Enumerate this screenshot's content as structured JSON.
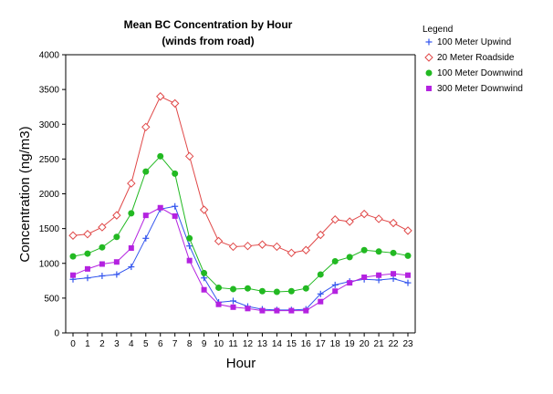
{
  "chart_data": {
    "type": "line",
    "title": "Mean BC Concentration by Hour",
    "subtitle": "(winds from road)",
    "xlabel": "Hour",
    "ylabel": "Concentration (ng/m3)",
    "xlim": [
      0,
      23
    ],
    "ylim": [
      0,
      4000
    ],
    "yticks": [
      0,
      500,
      1000,
      1500,
      2000,
      2500,
      3000,
      3500,
      4000
    ],
    "x": [
      0,
      1,
      2,
      3,
      4,
      5,
      6,
      7,
      8,
      9,
      10,
      11,
      12,
      13,
      14,
      15,
      16,
      17,
      18,
      19,
      20,
      21,
      22,
      23
    ],
    "grid": false,
    "legend": {
      "title": "Legend",
      "position": "top-right"
    },
    "series": [
      {
        "name": "100 Meter Upwind",
        "color": "#3355ee",
        "marker": "plus",
        "values": [
          770,
          790,
          820,
          840,
          950,
          1360,
          1780,
          1820,
          1250,
          790,
          440,
          460,
          380,
          340,
          330,
          330,
          340,
          560,
          690,
          740,
          770,
          760,
          780,
          720
        ]
      },
      {
        "name": "20 Meter Roadside",
        "color": "#e04848",
        "marker": "diamond-open",
        "values": [
          1400,
          1420,
          1520,
          1690,
          2150,
          2960,
          3400,
          3300,
          2540,
          1770,
          1320,
          1240,
          1250,
          1270,
          1240,
          1150,
          1190,
          1410,
          1630,
          1600,
          1710,
          1640,
          1580,
          1470
        ]
      },
      {
        "name": "100 Meter Downwind",
        "color": "#22b922",
        "marker": "circle",
        "values": [
          1100,
          1140,
          1230,
          1380,
          1720,
          2320,
          2540,
          2290,
          1360,
          860,
          650,
          630,
          640,
          600,
          590,
          600,
          640,
          840,
          1030,
          1090,
          1190,
          1170,
          1150,
          1110
        ]
      },
      {
        "name": "300 Meter Downwind",
        "color": "#b422e0",
        "marker": "square",
        "values": [
          830,
          920,
          990,
          1020,
          1220,
          1690,
          1800,
          1680,
          1040,
          620,
          410,
          370,
          350,
          320,
          320,
          320,
          320,
          450,
          600,
          720,
          800,
          830,
          850,
          830
        ]
      }
    ]
  }
}
